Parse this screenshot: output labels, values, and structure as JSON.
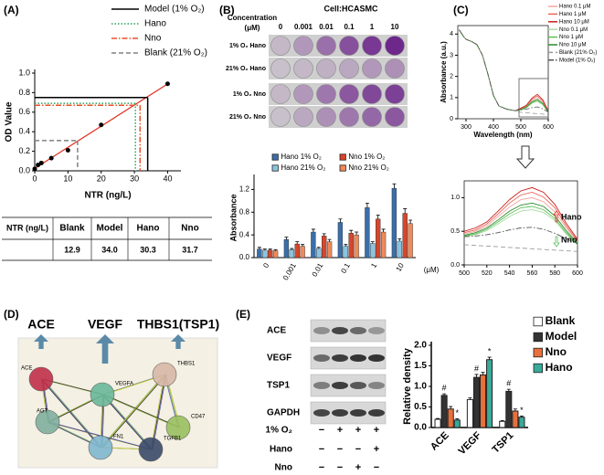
{
  "chart_data": [
    {
      "type": "line",
      "label": "(A)",
      "xlabel": "NTR (ng/L)",
      "ylabel": "OD Value",
      "xlim": [
        0,
        44
      ],
      "xticks": [
        0,
        10,
        20,
        30,
        40
      ],
      "ylim": [
        0,
        1.0
      ],
      "yticks": [
        {
          "value": 0,
          "label": "0.0"
        },
        0.2,
        0.4,
        0.6,
        0.8,
        {
          "value": 1,
          "label": "1.0"
        }
      ],
      "x": [
        0,
        1,
        2,
        5,
        10,
        20,
        40
      ],
      "values": [
        0.02,
        0.06,
        0.08,
        0.13,
        0.21,
        0.47,
        0.89
      ],
      "color": "#000000",
      "fit_color": "#e0301e",
      "reference_lines": [
        {
          "name": "Model (1% O₂)",
          "color": "#000000",
          "dash": "solid",
          "x": 34.0,
          "y": 0.75
        },
        {
          "name": "Hano",
          "color": "#2ca05a",
          "dash": "dotted",
          "x": 30.3,
          "y": 0.69
        },
        {
          "name": "Nno",
          "color": "#e8502a",
          "dash": "dashdot",
          "x": 31.7,
          "y": 0.67
        },
        {
          "name": "Blank (21% O₂)",
          "color": "#808080",
          "dash": "dashed",
          "x": 12.9,
          "y": 0.31
        }
      ]
    },
    {
      "type": "bar",
      "categories": [
        "0",
        "0.001",
        "0.01",
        "0.1",
        "1",
        "10"
      ],
      "x_unit": "(μM)",
      "ylabel": "Absorbance",
      "ylim": [
        0,
        1.4
      ],
      "yticks": [
        {
          "value": 0,
          "label": "0.0"
        },
        0.4,
        0.8,
        1.2
      ],
      "series": [
        {
          "name": "Hano 1% O₂",
          "color": "#3b6fa8",
          "values": [
            0.15,
            0.32,
            0.45,
            0.62,
            0.88,
            1.22
          ],
          "errors": [
            0.03,
            0.04,
            0.05,
            0.06,
            0.08,
            0.08
          ]
        },
        {
          "name": "Hano 21% O₂",
          "color": "#8cc4e0",
          "values": [
            0.13,
            0.14,
            0.16,
            0.2,
            0.25,
            0.29
          ],
          "errors": [
            0.02,
            0.02,
            0.02,
            0.03,
            0.03,
            0.04
          ]
        },
        {
          "name": "Nno 1% O₂",
          "color": "#d9452a",
          "values": [
            0.13,
            0.24,
            0.38,
            0.43,
            0.68,
            0.78
          ],
          "errors": [
            0.02,
            0.04,
            0.04,
            0.05,
            0.07,
            0.08
          ]
        },
        {
          "name": "Nno 21% O₂",
          "color": "#f08a5a",
          "values": [
            0.12,
            0.2,
            0.28,
            0.4,
            0.45,
            0.6
          ],
          "errors": [
            0.02,
            0.03,
            0.04,
            0.05,
            0.05,
            0.06
          ]
        }
      ]
    },
    {
      "type": "line",
      "label": "(C)",
      "xlabel": "Wavelength (nm)",
      "ylabel": "Absorbance (a.u.)",
      "xlim": [
        270,
        600
      ],
      "xticks": [
        300,
        400,
        500,
        600
      ],
      "ylim": [
        0,
        4.4
      ],
      "yticks": [
        0,
        1,
        2,
        3,
        4
      ],
      "x": [
        275,
        290,
        300,
        320,
        340,
        360,
        380,
        400,
        420,
        450,
        480,
        500,
        520,
        540,
        560,
        580,
        600
      ],
      "series": [
        {
          "name": "Hano 0.1 μM",
          "color": "#f4a6a0",
          "dash": "solid",
          "values": [
            4.2,
            3.9,
            3.75,
            3.65,
            3.5,
            3.0,
            2.1,
            1.1,
            0.6,
            0.45,
            0.38,
            0.46,
            0.58,
            0.86,
            1.0,
            0.79,
            0.34
          ]
        },
        {
          "name": "Hano 1 μM",
          "color": "#e8625a",
          "dash": "solid",
          "values": [
            4.2,
            3.9,
            3.75,
            3.65,
            3.5,
            3.0,
            2.1,
            1.1,
            0.6,
            0.45,
            0.38,
            0.48,
            0.61,
            0.92,
            1.08,
            0.85,
            0.36
          ]
        },
        {
          "name": "Hano 10 μM",
          "color": "#c8201a",
          "dash": "solid",
          "values": [
            4.2,
            3.9,
            3.75,
            3.65,
            3.5,
            3.0,
            2.1,
            1.1,
            0.6,
            0.45,
            0.38,
            0.5,
            0.64,
            0.97,
            1.15,
            0.9,
            0.38
          ]
        },
        {
          "name": "Nno 0.1 μM",
          "color": "#a8dca0",
          "dash": "solid",
          "values": [
            4.2,
            3.9,
            3.75,
            3.65,
            3.5,
            3.0,
            2.1,
            1.1,
            0.6,
            0.45,
            0.38,
            0.42,
            0.51,
            0.72,
            0.82,
            0.66,
            0.3
          ]
        },
        {
          "name": "Nno 1 μM",
          "color": "#5cbf5a",
          "dash": "solid",
          "values": [
            4.2,
            3.9,
            3.75,
            3.65,
            3.5,
            3.0,
            2.1,
            1.1,
            0.6,
            0.45,
            0.38,
            0.43,
            0.53,
            0.76,
            0.87,
            0.69,
            0.31
          ]
        },
        {
          "name": "Nno 10 μM",
          "color": "#2a8a2a",
          "dash": "solid",
          "values": [
            4.2,
            3.9,
            3.75,
            3.65,
            3.5,
            3.0,
            2.1,
            1.1,
            0.6,
            0.45,
            0.38,
            0.44,
            0.55,
            0.8,
            0.92,
            0.73,
            0.32
          ]
        },
        {
          "name": "Blank (21% O₂)",
          "color": "#9a9a9a",
          "dash": "dashed",
          "values": [
            4.2,
            3.9,
            3.75,
            3.65,
            3.5,
            3.0,
            2.1,
            1.1,
            0.6,
            0.45,
            0.38,
            0.3,
            0.28,
            0.26,
            0.24,
            0.22,
            0.2
          ]
        },
        {
          "name": "Model (1% O₂)",
          "color": "#555555",
          "dash": "dashdot",
          "values": [
            4.2,
            3.9,
            3.75,
            3.65,
            3.5,
            3.0,
            2.1,
            1.1,
            0.6,
            0.45,
            0.38,
            0.42,
            0.45,
            0.52,
            0.56,
            0.47,
            0.31
          ]
        }
      ]
    },
    {
      "type": "line",
      "xlim": [
        500,
        600
      ],
      "xticks": [
        500,
        520,
        540,
        560,
        580,
        600
      ],
      "ylim": [
        0,
        1.25
      ],
      "yticks": [
        {
          "value": 0,
          "label": "0.0"
        },
        0.5,
        {
          "value": 1,
          "label": "1.0"
        }
      ],
      "x": [
        500,
        510,
        520,
        530,
        540,
        550,
        560,
        570,
        580,
        590,
        600
      ],
      "series": [
        {
          "color": "#f4a6a0",
          "dash": "solid",
          "values": [
            0.46,
            0.5,
            0.58,
            0.72,
            0.86,
            0.97,
            1.0,
            0.94,
            0.79,
            0.55,
            0.34
          ]
        },
        {
          "color": "#e8625a",
          "dash": "solid",
          "values": [
            0.48,
            0.52,
            0.61,
            0.76,
            0.92,
            1.04,
            1.08,
            1.01,
            0.85,
            0.58,
            0.36
          ]
        },
        {
          "color": "#c8201a",
          "dash": "solid",
          "values": [
            0.5,
            0.55,
            0.64,
            0.8,
            0.97,
            1.1,
            1.15,
            1.08,
            0.9,
            0.62,
            0.38
          ]
        },
        {
          "color": "#a8dca0",
          "dash": "solid",
          "values": [
            0.42,
            0.45,
            0.51,
            0.61,
            0.72,
            0.8,
            0.82,
            0.78,
            0.66,
            0.46,
            0.3
          ]
        },
        {
          "color": "#5cbf5a",
          "dash": "solid",
          "values": [
            0.43,
            0.46,
            0.53,
            0.64,
            0.76,
            0.85,
            0.87,
            0.82,
            0.69,
            0.48,
            0.31
          ]
        },
        {
          "color": "#2a8a2a",
          "dash": "solid",
          "values": [
            0.44,
            0.48,
            0.55,
            0.67,
            0.8,
            0.89,
            0.92,
            0.87,
            0.73,
            0.51,
            0.32
          ]
        },
        {
          "color": "#9a9a9a",
          "dash": "dashed",
          "values": [
            0.3,
            0.29,
            0.28,
            0.27,
            0.26,
            0.25,
            0.24,
            0.23,
            0.22,
            0.21,
            0.2
          ]
        },
        {
          "color": "#555555",
          "dash": "dashdot",
          "values": [
            0.42,
            0.43,
            0.45,
            0.48,
            0.52,
            0.55,
            0.56,
            0.53,
            0.47,
            0.39,
            0.31
          ]
        }
      ],
      "annotations": [
        {
          "text": "Hano",
          "color": "#e8302a"
        },
        {
          "text": "Nno",
          "color": "#5cbf5a"
        }
      ]
    },
    {
      "type": "bar",
      "categories": [
        "ACE",
        "VEGF",
        "TSP1"
      ],
      "ylabel": "Relative density",
      "ylim": [
        0,
        2.0
      ],
      "yticks": [
        {
          "value": 0,
          "label": "0.0"
        },
        0.5,
        {
          "value": 1,
          "label": "1.0"
        },
        1.5,
        {
          "value": 2,
          "label": "2.0"
        }
      ],
      "series": [
        {
          "name": "Blank",
          "color": "#ffffff",
          "values": [
            0.2,
            0.68,
            0.15
          ],
          "errors": [
            0.02,
            0.04,
            0.02
          ]
        },
        {
          "name": "Model",
          "color": "#333333",
          "values": [
            0.78,
            1.22,
            0.88
          ],
          "errors": [
            0.04,
            0.07,
            0.05
          ],
          "sig": [
            "#",
            "#",
            "#"
          ]
        },
        {
          "name": "Nno",
          "color": "#e8703a",
          "values": [
            0.45,
            1.28,
            0.4
          ],
          "errors": [
            0.06,
            0.06,
            0.05
          ]
        },
        {
          "name": "Hano",
          "color": "#3aaa9a",
          "values": [
            0.18,
            1.65,
            0.25
          ],
          "errors": [
            0.03,
            0.06,
            0.03
          ],
          "sig": [
            "*",
            "*",
            "*"
          ]
        }
      ]
    }
  ],
  "table_a": {
    "header": [
      "NTR (ng/L)",
      "Blank",
      "Model",
      "Hano",
      "Nno"
    ],
    "row": [
      "12.9",
      "34.0",
      "30.3",
      "31.7"
    ]
  },
  "plate_b": {
    "label": "(B)",
    "title": "Cell:HCASMC",
    "concentration_label": [
      "Concentration",
      "(μM)"
    ],
    "columns": [
      "0",
      "0.001",
      "0.01",
      "0.1",
      "1",
      "10"
    ],
    "rows": [
      "1% O₂ Hano",
      "21% O₂ Hano",
      "1% O₂  Nno",
      "21% O₂  Nno"
    ]
  },
  "panel_d": {
    "label": "(D)",
    "headings": [
      "ACE",
      "VEGF",
      "THBS1(TSP1)"
    ],
    "nodes": [
      "ACE",
      "VEGFA",
      "THBS1",
      "CD47",
      "AGT",
      "FN1",
      "TGFB1"
    ]
  },
  "blot_e": {
    "label": "(E)",
    "bands": [
      "ACE",
      "VEGF",
      "TSP1",
      "GAPDH"
    ],
    "conditions": [
      {
        "name": "1% O₂",
        "signs": [
          "−",
          "+",
          "+",
          "+"
        ]
      },
      {
        "name": "Hano",
        "signs": [
          "−",
          "−",
          "−",
          "+"
        ]
      },
      {
        "name": "Nno",
        "signs": [
          "−",
          "−",
          "+",
          "−"
        ]
      }
    ]
  }
}
